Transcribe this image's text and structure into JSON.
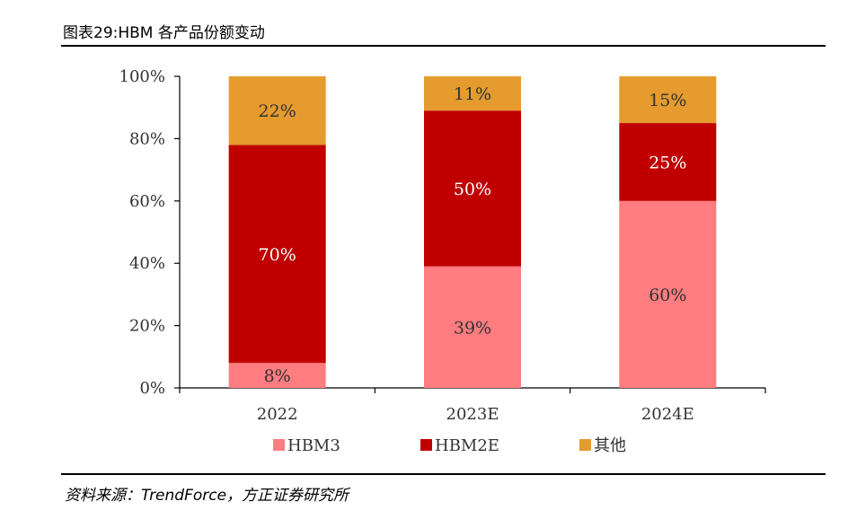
{
  "header": {
    "title": "图表29:HBM 各产品份额变动"
  },
  "footer": {
    "source": "资料来源：TrendForce，方正证券研究所"
  },
  "chart_data": {
    "type": "bar",
    "stacked": true,
    "categories": [
      "2022",
      "2023E",
      "2024E"
    ],
    "series": [
      {
        "name": "HBM3",
        "color": "#ff7c80",
        "values": [
          8,
          39,
          60
        ],
        "labels": [
          "8%",
          "39%",
          "60%"
        ],
        "label_color": "#333333"
      },
      {
        "name": "HBM2E",
        "color": "#c00000",
        "values": [
          70,
          50,
          25
        ],
        "labels": [
          "70%",
          "50%",
          "25%"
        ],
        "label_color": "#ffffff"
      },
      {
        "name": "其他",
        "color": "#e59b2e",
        "values": [
          22,
          11,
          15
        ],
        "labels": [
          "22%",
          "11%",
          "15%"
        ],
        "label_color": "#333333"
      }
    ],
    "ylim": [
      0,
      100
    ],
    "yticks": [
      0,
      20,
      40,
      60,
      80,
      100
    ],
    "ytick_labels": [
      "0%",
      "20%",
      "40%",
      "60%",
      "80%",
      "100%"
    ],
    "xlabel": "",
    "ylabel": "",
    "grid": false,
    "legend_position": "bottom"
  }
}
